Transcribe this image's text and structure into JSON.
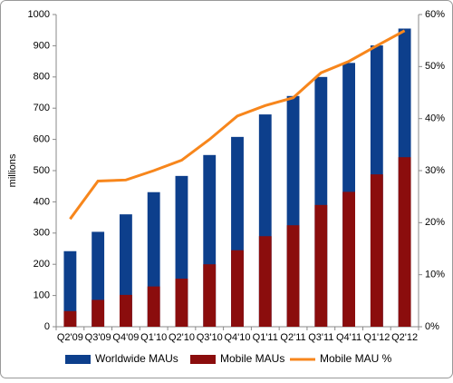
{
  "chart_data": {
    "type": "bar-line",
    "y_label": "millions",
    "categories": [
      "Q2'09",
      "Q3'09",
      "Q4'09",
      "Q1'10",
      "Q2'10",
      "Q3'10",
      "Q4'10",
      "Q1'11",
      "Q2'11",
      "Q3'11",
      "Q4'11",
      "Q1'12",
      "Q2'12"
    ],
    "series": [
      {
        "name": "Worldwide MAUs",
        "color": "#0d3f8c",
        "type": "bar",
        "values": [
          242,
          304,
          360,
          431,
          483,
          550,
          608,
          680,
          739,
          800,
          845,
          901,
          955
        ]
      },
      {
        "name": "Mobile MAUs",
        "color": "#8b0d0d",
        "type": "bar",
        "values": [
          50,
          86,
          102,
          129,
          154,
          200,
          245,
          290,
          325,
          390,
          432,
          488,
          543
        ]
      },
      {
        "name": "Mobile MAU %",
        "color": "#f7861c",
        "type": "line",
        "axis": "y2",
        "values": [
          20.7,
          28.0,
          28.2,
          30.0,
          32.0,
          36.0,
          40.5,
          42.5,
          44.0,
          48.8,
          51.0,
          54.0,
          56.9
        ]
      }
    ],
    "ylim": [
      0,
      1000
    ],
    "yticks": [
      0,
      100,
      200,
      300,
      400,
      500,
      600,
      700,
      800,
      900,
      1000
    ],
    "y2lim": [
      0,
      60
    ],
    "y2ticks": [
      {
        "value": 0,
        "label": "0%"
      },
      {
        "value": 10,
        "label": "10%"
      },
      {
        "value": 20,
        "label": "20%"
      },
      {
        "value": 30,
        "label": "30%"
      },
      {
        "value": 40,
        "label": "40%"
      },
      {
        "value": 50,
        "label": "50%"
      },
      {
        "value": 60,
        "label": "60%"
      }
    ],
    "legend": "bottom"
  }
}
